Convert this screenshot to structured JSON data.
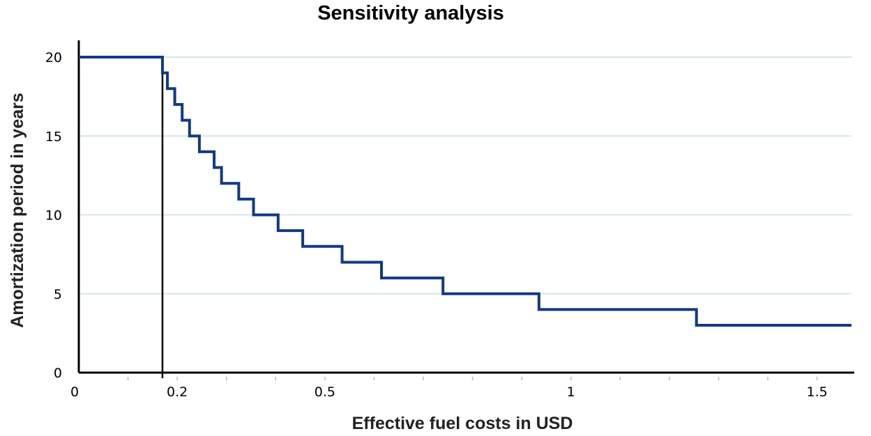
{
  "chart_data": {
    "type": "line",
    "title": "Sensitivity analysis",
    "xlabel": "Effective fuel costs in USD",
    "ylabel": "Amortization period in years",
    "xlim": [
      0,
      1.57
    ],
    "ylim": [
      0,
      20
    ],
    "grid": true,
    "step": "post",
    "x_ticks": [
      {
        "value": 0,
        "label": "0"
      },
      {
        "value": 0.2,
        "label": "0.2"
      },
      {
        "value": 0.5,
        "label": "0.5"
      },
      {
        "value": 1,
        "label": "1"
      },
      {
        "value": 1.5,
        "label": "1.5"
      }
    ],
    "y_ticks": [
      {
        "value": 0,
        "label": "0"
      },
      {
        "value": 5,
        "label": "5"
      },
      {
        "value": 10,
        "label": "10"
      },
      {
        "value": 15,
        "label": "15"
      },
      {
        "value": 20,
        "label": "20"
      }
    ],
    "reference_line": {
      "x": 0.17
    },
    "colors": {
      "series": "#0f3a87",
      "grid": "#d6e5ea",
      "axis": "#000000"
    },
    "series": [
      {
        "name": "Amortization period",
        "x": [
          0,
          0.17,
          0.18,
          0.195,
          0.21,
          0.225,
          0.245,
          0.275,
          0.29,
          0.325,
          0.355,
          0.405,
          0.455,
          0.535,
          0.615,
          0.74,
          0.935,
          1.255,
          1.57
        ],
        "y": [
          20,
          19,
          18,
          17,
          16,
          15,
          14,
          13,
          12,
          11,
          10,
          9,
          8,
          7,
          6,
          5,
          4,
          3,
          3
        ]
      }
    ]
  }
}
